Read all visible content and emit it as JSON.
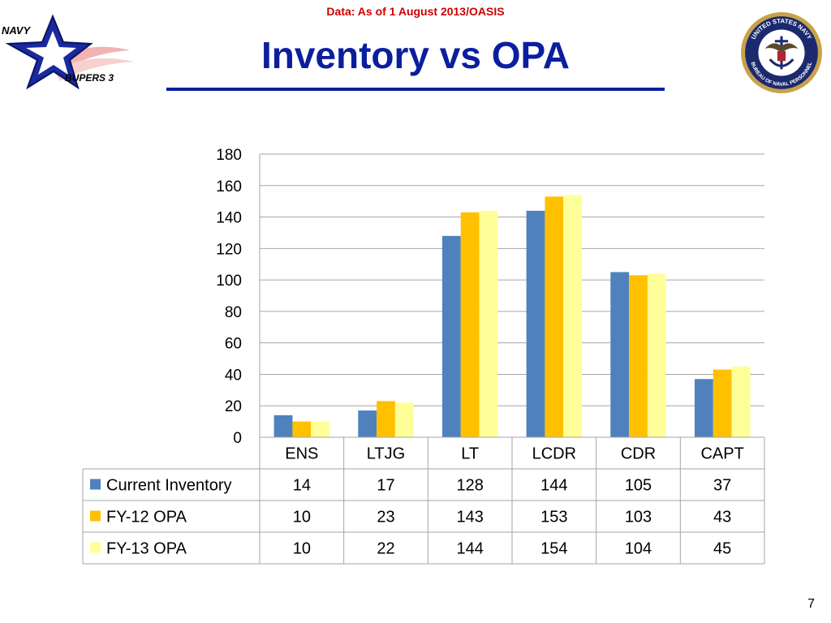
{
  "header": {
    "source_note": "Data: As of 1 August 2013/OASIS",
    "title": "Inventory vs OPA",
    "logo_text_top": "NAVY",
    "logo_text_bottom": "BUPERS 3",
    "seal_text_top": "UNITED STATES NAVY",
    "seal_text_bottom": "BUREAU OF NAVAL PERSONNEL"
  },
  "footer": {
    "page_number": "7"
  },
  "colors": {
    "title": "#0b1f9e",
    "source_note": "#cc0000",
    "series": [
      "#4f81bd",
      "#ffc000",
      "#ffff99"
    ]
  },
  "chart_data": {
    "type": "bar",
    "title": "",
    "xlabel": "",
    "ylabel": "",
    "categories": [
      "ENS",
      "LTJG",
      "LT",
      "LCDR",
      "CDR",
      "CAPT"
    ],
    "series": [
      {
        "name": "Current Inventory",
        "values": [
          14,
          17,
          128,
          144,
          105,
          37
        ]
      },
      {
        "name": "FY-12 OPA",
        "values": [
          10,
          23,
          143,
          153,
          103,
          43
        ]
      },
      {
        "name": "FY-13 OPA",
        "values": [
          10,
          22,
          144,
          154,
          104,
          45
        ]
      }
    ],
    "ylim": [
      0,
      180
    ],
    "yticks": [
      0,
      20,
      40,
      60,
      80,
      100,
      120,
      140,
      160,
      180
    ],
    "grid": true,
    "legend": "data-table"
  }
}
